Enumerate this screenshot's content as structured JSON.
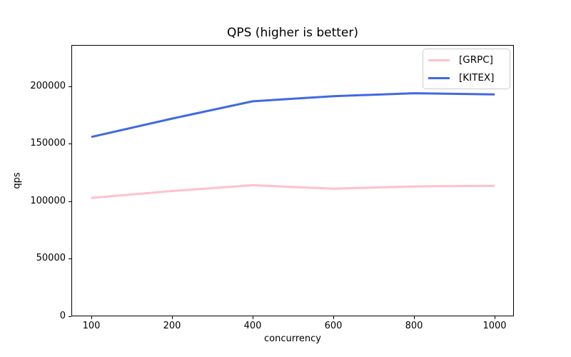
{
  "chart_data": {
    "type": "line",
    "title": "QPS (higher is better)",
    "xlabel": "concurrency",
    "ylabel": "qps",
    "categories": [
      "100",
      "200",
      "400",
      "600",
      "800",
      "1000"
    ],
    "series": [
      {
        "name": "[GRPC]",
        "color": "#ffc0cb",
        "values": [
          103000,
          109000,
          114000,
          111000,
          113000,
          113500
        ]
      },
      {
        "name": "[KITEX]",
        "color": "#4169e1",
        "values": [
          156000,
          172000,
          187000,
          191500,
          194000,
          193000
        ]
      }
    ],
    "yticks": [
      0,
      50000,
      100000,
      150000,
      200000
    ],
    "ytick_labels": [
      "0",
      "50000",
      "100000",
      "150000",
      "200000"
    ],
    "ylim": [
      0,
      236000
    ],
    "grid": false,
    "legend_position": "upper right",
    "line_width": 3,
    "spine_color": "#000000",
    "legend_border_color": "#cccccc"
  }
}
